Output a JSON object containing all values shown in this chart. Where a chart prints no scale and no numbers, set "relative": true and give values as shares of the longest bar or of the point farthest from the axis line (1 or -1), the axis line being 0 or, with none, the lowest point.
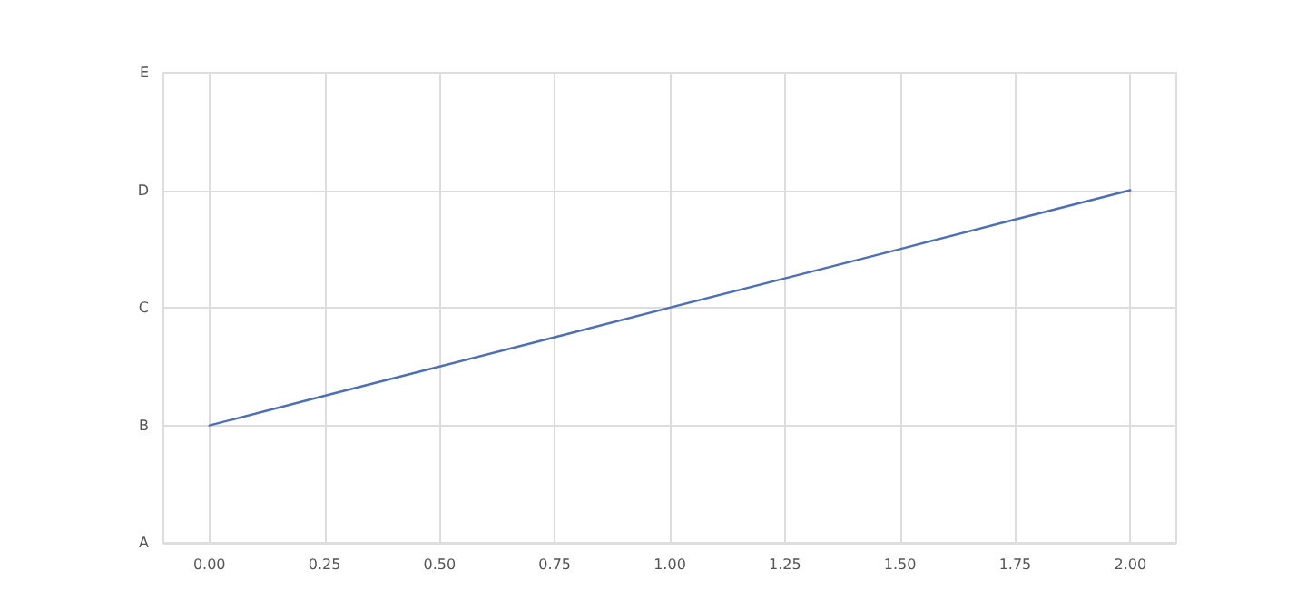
{
  "chart_data": {
    "type": "line",
    "relative": true,
    "x": [
      0,
      0.25,
      0.5,
      0.75,
      1,
      1.25,
      1.5,
      1.75,
      2
    ],
    "series": [
      {
        "color": "#4c6fb8",
        "values": [
          0.333,
          0.417,
          0.5,
          0.583,
          0.667,
          0.75,
          0.833,
          0.917,
          1
        ]
      }
    ],
    "xlim": [
      -0.1,
      2.1
    ],
    "xticks": [
      {
        "value": 0,
        "label": "0.00"
      },
      {
        "value": 0.25,
        "label": "0.25"
      },
      {
        "value": 0.5,
        "label": "0.50"
      },
      {
        "value": 0.75,
        "label": "0.75"
      },
      {
        "value": 1,
        "label": "1.00"
      },
      {
        "value": 1.25,
        "label": "1.25"
      },
      {
        "value": 1.5,
        "label": "1.50"
      },
      {
        "value": 1.75,
        "label": "1.75"
      },
      {
        "value": 2,
        "label": "2.00"
      }
    ],
    "annotations": [
      "E",
      "D",
      "C",
      "B",
      "A"
    ],
    "grid": true,
    "marker": "none",
    "line_style": "solid"
  }
}
